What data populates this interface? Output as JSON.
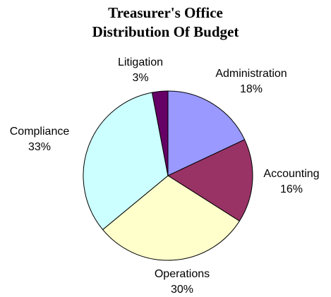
{
  "chart_data": {
    "type": "pie",
    "title": "Treasurer's Office",
    "subtitle": "Distribution Of Budget",
    "start_angle_deg": 0,
    "direction": "clockwise",
    "slices": [
      {
        "label": "Administration",
        "value": 18,
        "value_label": "18%",
        "color": "#9999FF"
      },
      {
        "label": "Accounting",
        "value": 16,
        "value_label": "16%",
        "color": "#993366"
      },
      {
        "label": "Operations",
        "value": 30,
        "value_label": "30%",
        "color": "#FFFFCC"
      },
      {
        "label": "Compliance",
        "value": 33,
        "value_label": "33%",
        "color": "#CCFFFF"
      },
      {
        "label": "Litigation",
        "value": 3,
        "value_label": "3%",
        "color": "#660066"
      }
    ]
  }
}
